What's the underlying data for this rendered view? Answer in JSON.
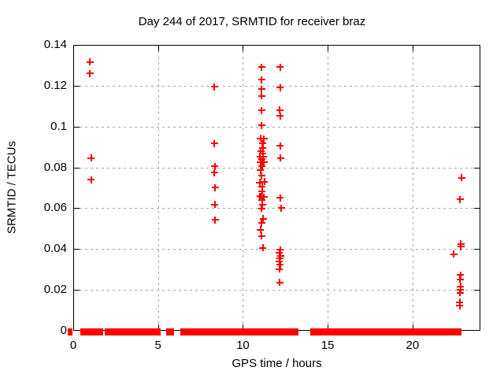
{
  "window": {
    "title": "gnuplot plot window"
  },
  "colors": {
    "marker": "#ff0000",
    "grid": "#a8a8a8",
    "border": "#000000",
    "background": "#ffffff"
  },
  "chart_data": {
    "type": "scatter",
    "title": "Day 244 of 2017, SRMTID for receiver braz",
    "xlabel": "GPS time / hours",
    "ylabel": "SRMTID / TECUs",
    "xlim": [
      0,
      24
    ],
    "ylim": [
      0,
      0.14
    ],
    "grid": true,
    "legend": "none",
    "marker_style": "plus",
    "xticks": [
      {
        "value": 0,
        "label": "0"
      },
      {
        "value": 5,
        "label": "5"
      },
      {
        "value": 10,
        "label": "10"
      },
      {
        "value": 15,
        "label": "15"
      },
      {
        "value": 20,
        "label": "20"
      }
    ],
    "yticks": [
      {
        "value": 0,
        "label": "0"
      },
      {
        "value": 0.02,
        "label": "0.02"
      },
      {
        "value": 0.04,
        "label": "0.04"
      },
      {
        "value": 0.06,
        "label": "0.06"
      },
      {
        "value": 0.08,
        "label": "0.08"
      },
      {
        "value": 0.1,
        "label": "0.1"
      },
      {
        "value": 0.12,
        "label": "0.12"
      },
      {
        "value": 0.14,
        "label": "0.14"
      }
    ],
    "points": [
      [
        0.95,
        0.132
      ],
      [
        0.95,
        0.1265
      ],
      [
        1.0,
        0.085
      ],
      [
        1.0,
        0.0743
      ],
      [
        8.27,
        0.1198
      ],
      [
        8.27,
        0.092
      ],
      [
        8.29,
        0.0808
      ],
      [
        8.28,
        0.0778
      ],
      [
        8.31,
        0.0705
      ],
      [
        8.3,
        0.0622
      ],
      [
        8.31,
        0.0547
      ],
      [
        11.05,
        0.1295
      ],
      [
        11.06,
        0.1233
      ],
      [
        11.07,
        0.1186
      ],
      [
        11.07,
        0.1154
      ],
      [
        11.05,
        0.1083
      ],
      [
        11.07,
        0.101
      ],
      [
        11.0,
        0.0945
      ],
      [
        11.2,
        0.0943
      ],
      [
        11.1,
        0.092
      ],
      [
        11.12,
        0.09
      ],
      [
        11.02,
        0.0885
      ],
      [
        11.12,
        0.087
      ],
      [
        10.97,
        0.0856
      ],
      [
        11.16,
        0.0858
      ],
      [
        11.08,
        0.0843
      ],
      [
        11.0,
        0.083
      ],
      [
        11.19,
        0.083
      ],
      [
        11.08,
        0.0811
      ],
      [
        11.0,
        0.079
      ],
      [
        11.05,
        0.0763
      ],
      [
        10.95,
        0.073
      ],
      [
        11.22,
        0.0733
      ],
      [
        11.08,
        0.0708
      ],
      [
        11.08,
        0.0688
      ],
      [
        10.96,
        0.0662
      ],
      [
        11.07,
        0.066
      ],
      [
        11.2,
        0.0658
      ],
      [
        11.09,
        0.0645
      ],
      [
        11.1,
        0.0622
      ],
      [
        11.07,
        0.0603
      ],
      [
        11.15,
        0.0552
      ],
      [
        11.06,
        0.0532
      ],
      [
        11.0,
        0.0498
      ],
      [
        11.07,
        0.0468
      ],
      [
        11.13,
        0.041
      ],
      [
        12.14,
        0.1295
      ],
      [
        12.16,
        0.1194
      ],
      [
        12.13,
        0.1085
      ],
      [
        12.16,
        0.1055
      ],
      [
        12.14,
        0.091
      ],
      [
        12.18,
        0.0849
      ],
      [
        12.15,
        0.0655
      ],
      [
        12.21,
        0.0604
      ],
      [
        12.14,
        0.04
      ],
      [
        12.1,
        0.0385
      ],
      [
        12.17,
        0.037
      ],
      [
        12.13,
        0.0359
      ],
      [
        12.1,
        0.0342
      ],
      [
        12.14,
        0.0327
      ],
      [
        12.1,
        0.0305
      ],
      [
        12.13,
        0.0241
      ],
      [
        22.85,
        0.0753
      ],
      [
        22.76,
        0.0647
      ],
      [
        22.8,
        0.043
      ],
      [
        22.8,
        0.0415
      ],
      [
        22.39,
        0.0378
      ],
      [
        22.78,
        0.0276
      ],
      [
        22.76,
        0.0256
      ],
      [
        22.78,
        0.022
      ],
      [
        22.78,
        0.0206
      ],
      [
        22.76,
        0.019
      ],
      [
        22.74,
        0.0143
      ],
      [
        22.74,
        0.0127
      ]
    ],
    "zero_band_segments": [
      [
        -0.26,
        -0.2
      ],
      [
        0.51,
        1.18
      ],
      [
        1.26,
        1.36
      ],
      [
        1.49,
        1.6
      ],
      [
        1.91,
        2.23
      ],
      [
        2.34,
        2.57
      ],
      [
        2.81,
        3.12
      ],
      [
        3.22,
        3.46
      ],
      [
        3.55,
        4.28
      ],
      [
        4.36,
        4.47
      ],
      [
        4.56,
        4.74
      ],
      [
        4.81,
        4.85
      ],
      [
        4.98,
        5.01
      ],
      [
        5.57,
        5.67
      ],
      [
        5.75,
        5.8
      ],
      [
        6.4,
        6.84
      ],
      [
        6.88,
        6.94
      ],
      [
        7.02,
        7.07
      ],
      [
        7.22,
        8.88
      ],
      [
        9.08,
        9.86
      ],
      [
        9.99,
        10.06
      ],
      [
        10.17,
        10.27
      ],
      [
        10.36,
        10.67
      ],
      [
        10.76,
        11.07
      ],
      [
        11.22,
        12.06
      ],
      [
        12.19,
        12.31
      ],
      [
        12.37,
        13.12
      ],
      [
        14.05,
        14.11
      ],
      [
        14.16,
        14.2
      ],
      [
        14.33,
        15.29
      ],
      [
        15.36,
        15.44
      ],
      [
        15.55,
        15.83
      ],
      [
        15.94,
        16.03
      ],
      [
        16.14,
        16.45
      ],
      [
        16.65,
        16.76
      ],
      [
        16.99,
        17.07
      ],
      [
        17.19,
        17.3
      ],
      [
        17.35,
        17.41
      ],
      [
        17.53,
        17.61
      ],
      [
        17.66,
        17.72
      ],
      [
        17.85,
        17.92
      ],
      [
        17.97,
        18.78
      ],
      [
        18.85,
        18.93
      ],
      [
        18.98,
        19.09
      ],
      [
        19.16,
        19.24
      ],
      [
        19.29,
        19.47
      ],
      [
        19.63,
        20.48
      ],
      [
        20.64,
        20.79
      ],
      [
        21.02,
        21.1
      ],
      [
        21.22,
        21.3
      ],
      [
        21.36,
        21.49
      ],
      [
        21.6,
        21.64
      ],
      [
        21.8,
        22.73
      ]
    ]
  }
}
